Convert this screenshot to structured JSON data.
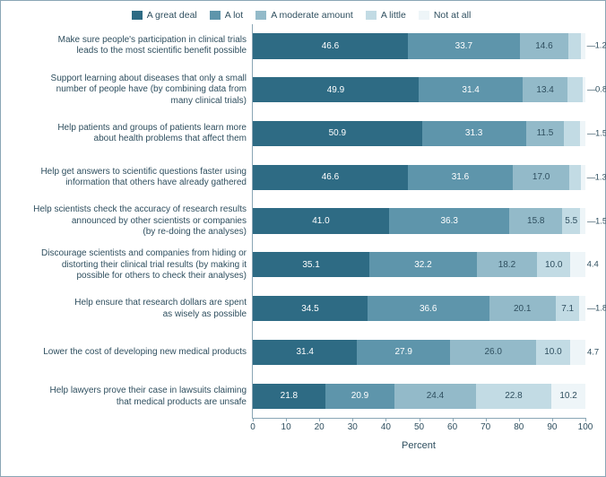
{
  "chart": {
    "type": "stacked-bar-horizontal",
    "xaxis": {
      "label": "Percent",
      "min": 0,
      "max": 100,
      "step": 10
    },
    "legend": [
      {
        "label": "A great deal",
        "color": "#2e6b84"
      },
      {
        "label": "A lot",
        "color": "#5e95ab"
      },
      {
        "label": "A moderate amount",
        "color": "#93bac9"
      },
      {
        "label": "A little",
        "color": "#c2dbe4"
      },
      {
        "label": "Not at all",
        "color": "#eef5f8"
      }
    ],
    "font": {
      "size": 10,
      "color": "#2f4f5f"
    },
    "frame_border": "#8aa6b5",
    "rows": [
      {
        "label": "Make sure people's participation in clinical trials\nleads to the most scientific benefit possible",
        "values": [
          46.6,
          33.7,
          14.6,
          3.8,
          1.2
        ],
        "trail": "1.2",
        "trail_dash": true
      },
      {
        "label": "Support learning about diseases that only a small\nnumber of people have (by combining data from\nmany clinical trials)",
        "values": [
          49.9,
          31.4,
          13.4,
          4.6,
          0.8
        ],
        "trail": "0.8",
        "trail_dash": true
      },
      {
        "label": "Help patients and groups of patients learn more\nabout health problems that affect them",
        "values": [
          50.9,
          31.3,
          11.5,
          4.9,
          1.5
        ],
        "trail": "1.5",
        "trail_dash": true
      },
      {
        "label": "Help get answers to scientific questions faster using\ninformation that others have already gathered",
        "values": [
          46.6,
          31.6,
          17.0,
          3.4,
          1.3
        ],
        "trail": "1.3",
        "trail_dash": true
      },
      {
        "label": "Help scientists check the accuracy of research results\nannounced by other scientists or companies\n(by re-doing the analyses)",
        "values": [
          41.0,
          36.3,
          15.8,
          5.5,
          1.5
        ],
        "trail": "1.5",
        "trail_dash": true
      },
      {
        "label": "Discourage scientists and companies from hiding or\ndistorting their clinical trial results (by making it\npossible for others to check their analyses)",
        "values": [
          35.1,
          32.2,
          18.2,
          10.0,
          4.4
        ],
        "trail": "4.4",
        "trail_dash": false
      },
      {
        "label": "Help ensure that research dollars are spent\nas wisely as possible",
        "values": [
          34.5,
          36.6,
          20.1,
          7.1,
          1.8
        ],
        "trail": "1.8",
        "trail_dash": true
      },
      {
        "label": "Lower the cost of developing new medical products",
        "values": [
          31.4,
          27.9,
          26.0,
          10.0,
          4.7
        ],
        "trail": "4.7",
        "trail_dash": false
      },
      {
        "label": "Help lawyers prove their case in lawsuits claiming\nthat medical products are unsafe",
        "values": [
          21.8,
          20.9,
          24.4,
          22.8,
          10.2
        ],
        "trail": "",
        "trail_dash": false
      }
    ],
    "hide_in_bar_threshold": 5.0
  }
}
